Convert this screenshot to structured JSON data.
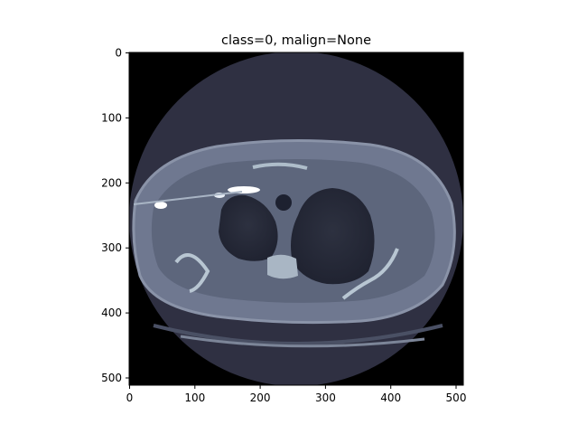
{
  "figure": {
    "title": "class=0, malign=None",
    "image_type": "axial CT slice (bone colormap)",
    "colormap": "bone",
    "image_size": [
      512,
      512
    ]
  },
  "axes": {
    "x_ticks": [
      "0",
      "100",
      "200",
      "300",
      "400",
      "500"
    ],
    "y_ticks": [
      "0",
      "100",
      "200",
      "300",
      "400",
      "500"
    ],
    "xlim": [
      0,
      512
    ],
    "ylim": [
      512,
      0
    ]
  }
}
